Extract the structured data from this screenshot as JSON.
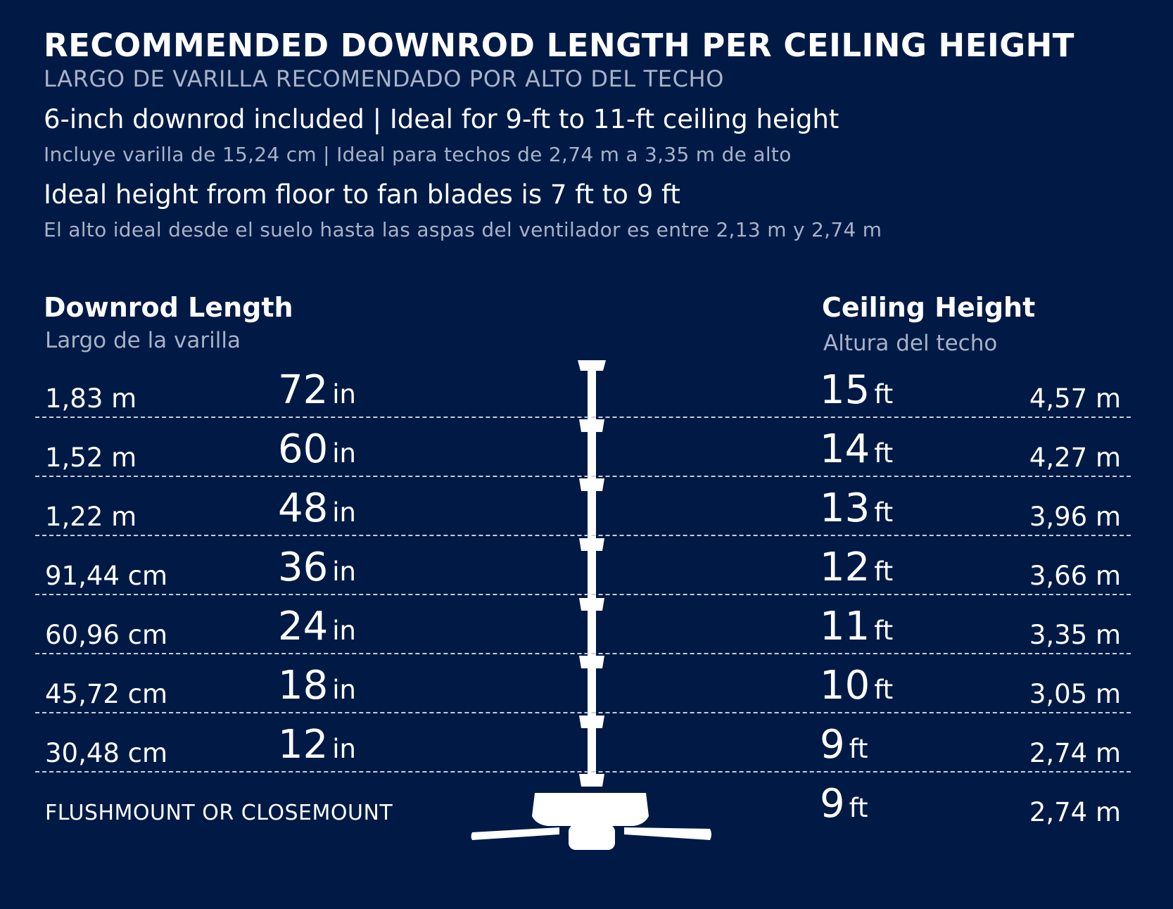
{
  "header": {
    "title": "RECOMMENDED DOWNROD LENGTH PER CEILING HEIGHT",
    "subtitle": "LARGO DE VARILLA RECOMENDADO POR ALTO DEL TECHO"
  },
  "notes": [
    {
      "en": "6-inch downrod included | Ideal for 9-ft to 11-ft ceiling height",
      "es": "Incluye varilla de 15,24 cm | Ideal para techos de 2,74 m a 3,35 m de alto"
    },
    {
      "en": "Ideal height from floor to fan blades is 7 ft to 9 ft",
      "es": "El alto ideal desde el suelo hasta las aspas del ventilador es entre 2,13 m y 2,74 m"
    }
  ],
  "columns": {
    "left": {
      "title": "Downrod Length",
      "subtitle": "Largo de la varilla"
    },
    "right": {
      "title": "Ceiling Height",
      "subtitle": "Altura del techo"
    }
  },
  "rows": [
    {
      "rod_metric": "1,83 m",
      "rod_value": "72",
      "rod_unit": "in",
      "ceiling_value": "15",
      "ceiling_unit": "ft",
      "ceiling_metric": "4,57 m"
    },
    {
      "rod_metric": "1,52 m",
      "rod_value": "60",
      "rod_unit": "in",
      "ceiling_value": "14",
      "ceiling_unit": "ft",
      "ceiling_metric": "4,27 m"
    },
    {
      "rod_metric": "1,22 m",
      "rod_value": "48",
      "rod_unit": "in",
      "ceiling_value": "13",
      "ceiling_unit": "ft",
      "ceiling_metric": "3,96 m"
    },
    {
      "rod_metric": "91,44 cm",
      "rod_value": "36",
      "rod_unit": "in",
      "ceiling_value": "12",
      "ceiling_unit": "ft",
      "ceiling_metric": "3,66 m"
    },
    {
      "rod_metric": "60,96 cm",
      "rod_value": "24",
      "rod_unit": "in",
      "ceiling_value": "11",
      "ceiling_unit": "ft",
      "ceiling_metric": "3,35 m"
    },
    {
      "rod_metric": "45,72 cm",
      "rod_value": "18",
      "rod_unit": "in",
      "ceiling_value": "10",
      "ceiling_unit": "ft",
      "ceiling_metric": "3,05 m"
    },
    {
      "rod_metric": "30,48 cm",
      "rod_value": "12",
      "rod_unit": "in",
      "ceiling_value": "9",
      "ceiling_unit": "ft",
      "ceiling_metric": "2,74 m"
    }
  ],
  "flush_row": {
    "label": "FLUSHMOUNT OR CLOSEMOUNT",
    "ceiling_value": "9",
    "ceiling_unit": "ft",
    "ceiling_metric": "2,74 m"
  },
  "colors": {
    "background": "#001a45",
    "text": "#ffffff",
    "muted": "#a8b2c8"
  },
  "icons": [
    "ceiling-fan-icon",
    "downrod-icon",
    "canopy-icon"
  ]
}
